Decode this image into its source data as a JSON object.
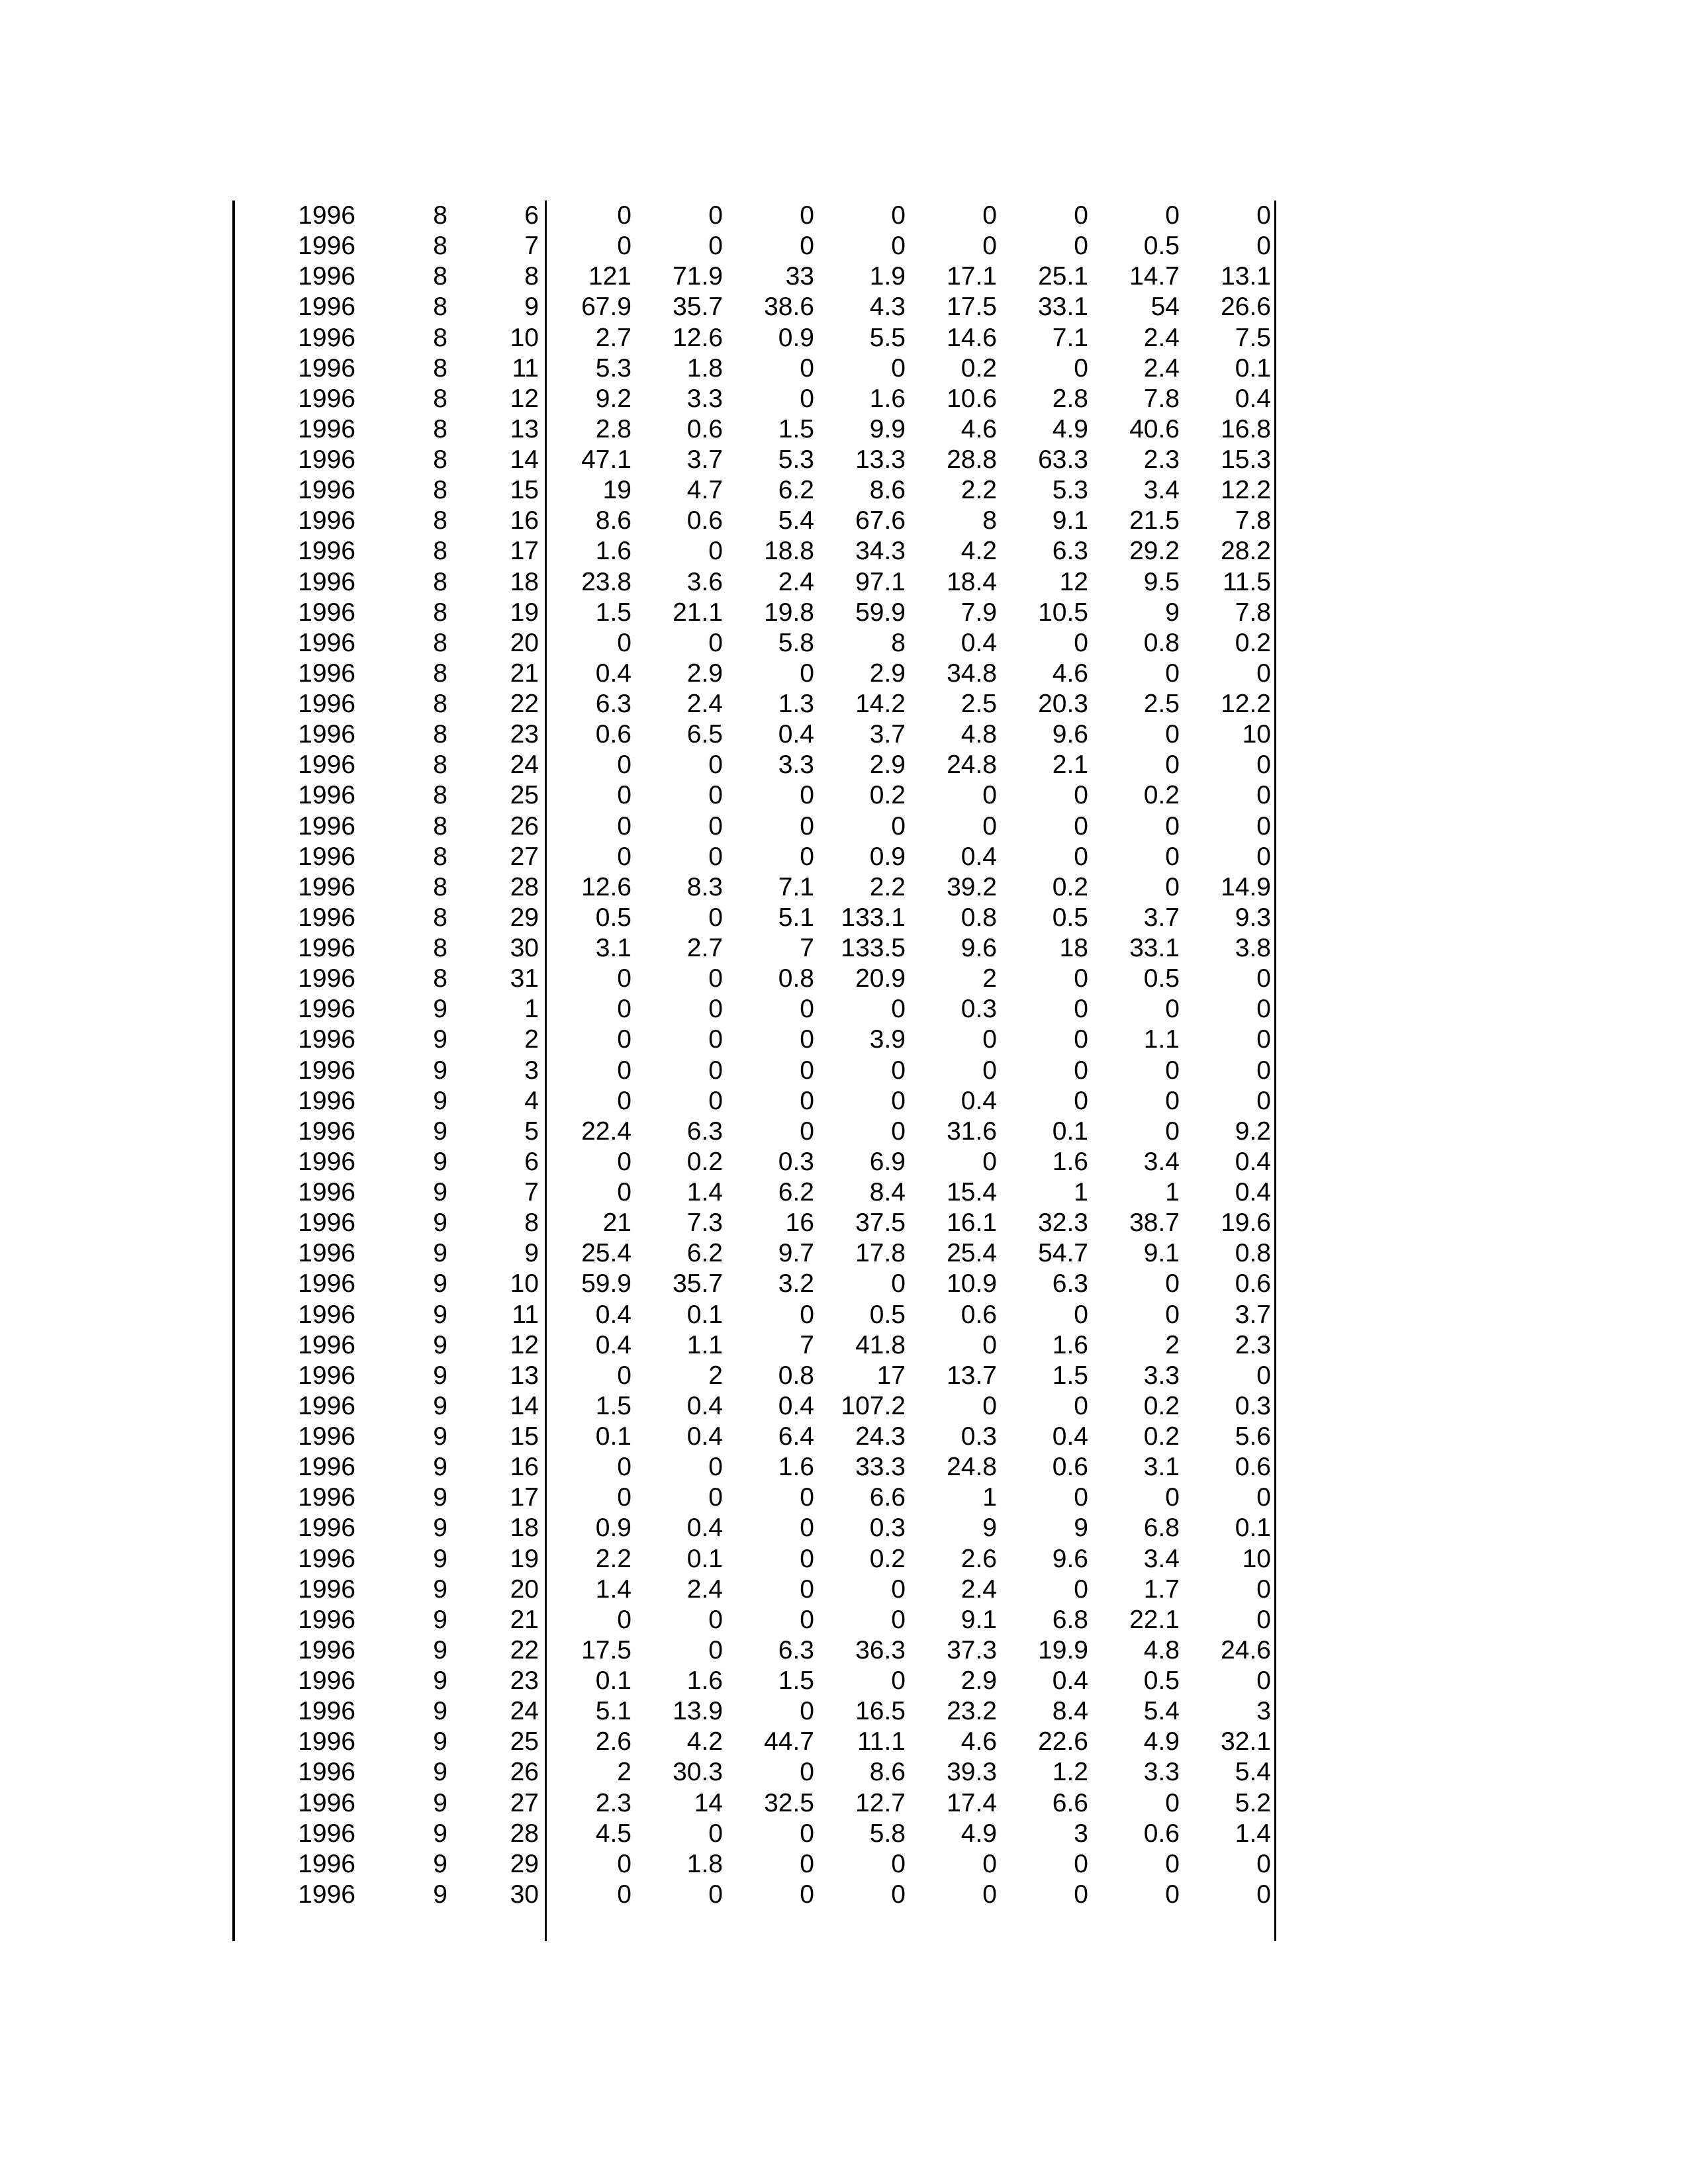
{
  "table": {
    "rows": [
      [
        "1996",
        "8",
        "6",
        "0",
        "0",
        "0",
        "0",
        "0",
        "0",
        "0",
        "0"
      ],
      [
        "1996",
        "8",
        "7",
        "0",
        "0",
        "0",
        "0",
        "0",
        "0",
        "0.5",
        "0"
      ],
      [
        "1996",
        "8",
        "8",
        "121",
        "71.9",
        "33",
        "1.9",
        "17.1",
        "25.1",
        "14.7",
        "13.1"
      ],
      [
        "1996",
        "8",
        "9",
        "67.9",
        "35.7",
        "38.6",
        "4.3",
        "17.5",
        "33.1",
        "54",
        "26.6"
      ],
      [
        "1996",
        "8",
        "10",
        "2.7",
        "12.6",
        "0.9",
        "5.5",
        "14.6",
        "7.1",
        "2.4",
        "7.5"
      ],
      [
        "1996",
        "8",
        "11",
        "5.3",
        "1.8",
        "0",
        "0",
        "0.2",
        "0",
        "2.4",
        "0.1"
      ],
      [
        "1996",
        "8",
        "12",
        "9.2",
        "3.3",
        "0",
        "1.6",
        "10.6",
        "2.8",
        "7.8",
        "0.4"
      ],
      [
        "1996",
        "8",
        "13",
        "2.8",
        "0.6",
        "1.5",
        "9.9",
        "4.6",
        "4.9",
        "40.6",
        "16.8"
      ],
      [
        "1996",
        "8",
        "14",
        "47.1",
        "3.7",
        "5.3",
        "13.3",
        "28.8",
        "63.3",
        "2.3",
        "15.3"
      ],
      [
        "1996",
        "8",
        "15",
        "19",
        "4.7",
        "6.2",
        "8.6",
        "2.2",
        "5.3",
        "3.4",
        "12.2"
      ],
      [
        "1996",
        "8",
        "16",
        "8.6",
        "0.6",
        "5.4",
        "67.6",
        "8",
        "9.1",
        "21.5",
        "7.8"
      ],
      [
        "1996",
        "8",
        "17",
        "1.6",
        "0",
        "18.8",
        "34.3",
        "4.2",
        "6.3",
        "29.2",
        "28.2"
      ],
      [
        "1996",
        "8",
        "18",
        "23.8",
        "3.6",
        "2.4",
        "97.1",
        "18.4",
        "12",
        "9.5",
        "11.5"
      ],
      [
        "1996",
        "8",
        "19",
        "1.5",
        "21.1",
        "19.8",
        "59.9",
        "7.9",
        "10.5",
        "9",
        "7.8"
      ],
      [
        "1996",
        "8",
        "20",
        "0",
        "0",
        "5.8",
        "8",
        "0.4",
        "0",
        "0.8",
        "0.2"
      ],
      [
        "1996",
        "8",
        "21",
        "0.4",
        "2.9",
        "0",
        "2.9",
        "34.8",
        "4.6",
        "0",
        "0"
      ],
      [
        "1996",
        "8",
        "22",
        "6.3",
        "2.4",
        "1.3",
        "14.2",
        "2.5",
        "20.3",
        "2.5",
        "12.2"
      ],
      [
        "1996",
        "8",
        "23",
        "0.6",
        "6.5",
        "0.4",
        "3.7",
        "4.8",
        "9.6",
        "0",
        "10"
      ],
      [
        "1996",
        "8",
        "24",
        "0",
        "0",
        "3.3",
        "2.9",
        "24.8",
        "2.1",
        "0",
        "0"
      ],
      [
        "1996",
        "8",
        "25",
        "0",
        "0",
        "0",
        "0.2",
        "0",
        "0",
        "0.2",
        "0"
      ],
      [
        "1996",
        "8",
        "26",
        "0",
        "0",
        "0",
        "0",
        "0",
        "0",
        "0",
        "0"
      ],
      [
        "1996",
        "8",
        "27",
        "0",
        "0",
        "0",
        "0.9",
        "0.4",
        "0",
        "0",
        "0"
      ],
      [
        "1996",
        "8",
        "28",
        "12.6",
        "8.3",
        "7.1",
        "2.2",
        "39.2",
        "0.2",
        "0",
        "14.9"
      ],
      [
        "1996",
        "8",
        "29",
        "0.5",
        "0",
        "5.1",
        "133.1",
        "0.8",
        "0.5",
        "3.7",
        "9.3"
      ],
      [
        "1996",
        "8",
        "30",
        "3.1",
        "2.7",
        "7",
        "133.5",
        "9.6",
        "18",
        "33.1",
        "3.8"
      ],
      [
        "1996",
        "8",
        "31",
        "0",
        "0",
        "0.8",
        "20.9",
        "2",
        "0",
        "0.5",
        "0"
      ],
      [
        "1996",
        "9",
        "1",
        "0",
        "0",
        "0",
        "0",
        "0.3",
        "0",
        "0",
        "0"
      ],
      [
        "1996",
        "9",
        "2",
        "0",
        "0",
        "0",
        "3.9",
        "0",
        "0",
        "1.1",
        "0"
      ],
      [
        "1996",
        "9",
        "3",
        "0",
        "0",
        "0",
        "0",
        "0",
        "0",
        "0",
        "0"
      ],
      [
        "1996",
        "9",
        "4",
        "0",
        "0",
        "0",
        "0",
        "0.4",
        "0",
        "0",
        "0"
      ],
      [
        "1996",
        "9",
        "5",
        "22.4",
        "6.3",
        "0",
        "0",
        "31.6",
        "0.1",
        "0",
        "9.2"
      ],
      [
        "1996",
        "9",
        "6",
        "0",
        "0.2",
        "0.3",
        "6.9",
        "0",
        "1.6",
        "3.4",
        "0.4"
      ],
      [
        "1996",
        "9",
        "7",
        "0",
        "1.4",
        "6.2",
        "8.4",
        "15.4",
        "1",
        "1",
        "0.4"
      ],
      [
        "1996",
        "9",
        "8",
        "21",
        "7.3",
        "16",
        "37.5",
        "16.1",
        "32.3",
        "38.7",
        "19.6"
      ],
      [
        "1996",
        "9",
        "9",
        "25.4",
        "6.2",
        "9.7",
        "17.8",
        "25.4",
        "54.7",
        "9.1",
        "0.8"
      ],
      [
        "1996",
        "9",
        "10",
        "59.9",
        "35.7",
        "3.2",
        "0",
        "10.9",
        "6.3",
        "0",
        "0.6"
      ],
      [
        "1996",
        "9",
        "11",
        "0.4",
        "0.1",
        "0",
        "0.5",
        "0.6",
        "0",
        "0",
        "3.7"
      ],
      [
        "1996",
        "9",
        "12",
        "0.4",
        "1.1",
        "7",
        "41.8",
        "0",
        "1.6",
        "2",
        "2.3"
      ],
      [
        "1996",
        "9",
        "13",
        "0",
        "2",
        "0.8",
        "17",
        "13.7",
        "1.5",
        "3.3",
        "0"
      ],
      [
        "1996",
        "9",
        "14",
        "1.5",
        "0.4",
        "0.4",
        "107.2",
        "0",
        "0",
        "0.2",
        "0.3"
      ],
      [
        "1996",
        "9",
        "15",
        "0.1",
        "0.4",
        "6.4",
        "24.3",
        "0.3",
        "0.4",
        "0.2",
        "5.6"
      ],
      [
        "1996",
        "9",
        "16",
        "0",
        "0",
        "1.6",
        "33.3",
        "24.8",
        "0.6",
        "3.1",
        "0.6"
      ],
      [
        "1996",
        "9",
        "17",
        "0",
        "0",
        "0",
        "6.6",
        "1",
        "0",
        "0",
        "0"
      ],
      [
        "1996",
        "9",
        "18",
        "0.9",
        "0.4",
        "0",
        "0.3",
        "9",
        "9",
        "6.8",
        "0.1"
      ],
      [
        "1996",
        "9",
        "19",
        "2.2",
        "0.1",
        "0",
        "0.2",
        "2.6",
        "9.6",
        "3.4",
        "10"
      ],
      [
        "1996",
        "9",
        "20",
        "1.4",
        "2.4",
        "0",
        "0",
        "2.4",
        "0",
        "1.7",
        "0"
      ],
      [
        "1996",
        "9",
        "21",
        "0",
        "0",
        "0",
        "0",
        "9.1",
        "6.8",
        "22.1",
        "0"
      ],
      [
        "1996",
        "9",
        "22",
        "17.5",
        "0",
        "6.3",
        "36.3",
        "37.3",
        "19.9",
        "4.8",
        "24.6"
      ],
      [
        "1996",
        "9",
        "23",
        "0.1",
        "1.6",
        "1.5",
        "0",
        "2.9",
        "0.4",
        "0.5",
        "0"
      ],
      [
        "1996",
        "9",
        "24",
        "5.1",
        "13.9",
        "0",
        "16.5",
        "23.2",
        "8.4",
        "5.4",
        "3"
      ],
      [
        "1996",
        "9",
        "25",
        "2.6",
        "4.2",
        "44.7",
        "11.1",
        "4.6",
        "22.6",
        "4.9",
        "32.1"
      ],
      [
        "1996",
        "9",
        "26",
        "2",
        "30.3",
        "0",
        "8.6",
        "39.3",
        "1.2",
        "3.3",
        "5.4"
      ],
      [
        "1996",
        "9",
        "27",
        "2.3",
        "14",
        "32.5",
        "12.7",
        "17.4",
        "6.6",
        "0",
        "5.2"
      ],
      [
        "1996",
        "9",
        "28",
        "4.5",
        "0",
        "0",
        "5.8",
        "4.9",
        "3",
        "0.6",
        "1.4"
      ],
      [
        "1996",
        "9",
        "29",
        "0",
        "1.8",
        "0",
        "0",
        "0",
        "0",
        "0",
        "0"
      ],
      [
        "1996",
        "9",
        "30",
        "0",
        "0",
        "0",
        "0",
        "0",
        "0",
        "0",
        "0"
      ]
    ]
  }
}
